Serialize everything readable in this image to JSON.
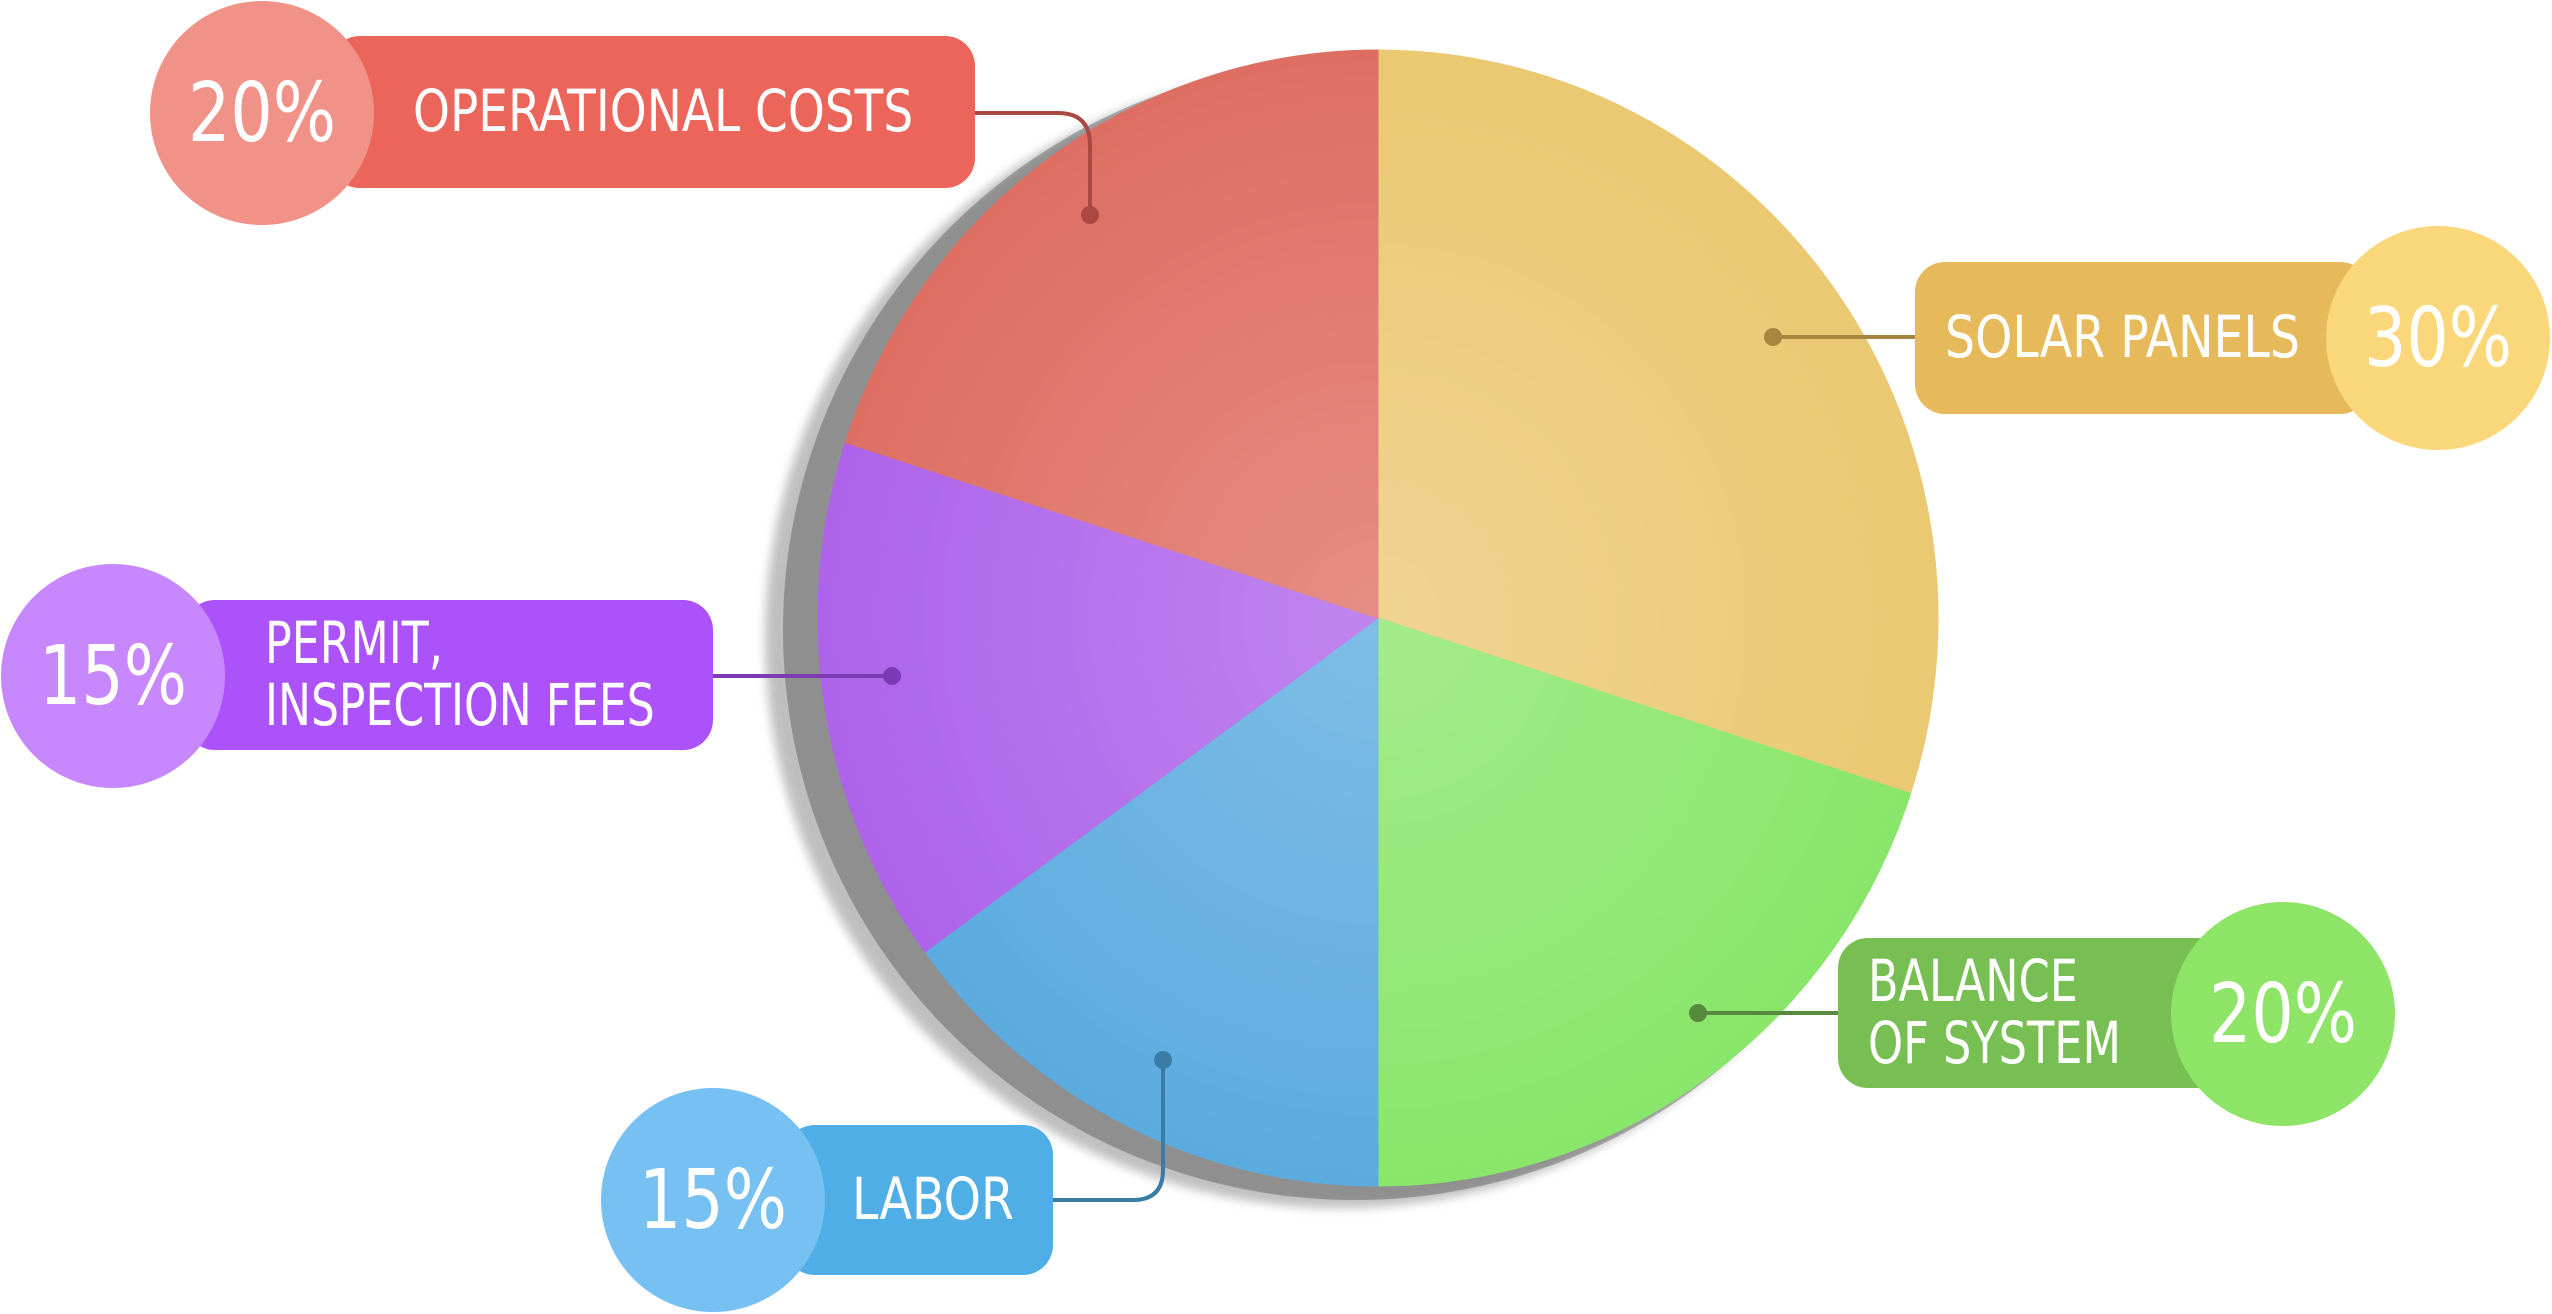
{
  "chart_data": {
    "type": "pie",
    "title": "",
    "slices": [
      {
        "label_lines": [
          "SOLAR PANELS"
        ],
        "value": 30,
        "percent_text": "30%",
        "color": "#EBC872",
        "tab_color": "#E6BA5A",
        "circle_color": "#F9D77A"
      },
      {
        "label_lines": [
          "BALANCE",
          "OF SYSTEM"
        ],
        "value": 20,
        "percent_text": "20%",
        "color": "#8AE66A",
        "tab_color": "#78BF53",
        "circle_color": "#8DE467"
      },
      {
        "label_lines": [
          "LABOR"
        ],
        "value": 15,
        "percent_text": "15%",
        "color": "#5BABDF",
        "tab_color": "#4FAEE6",
        "circle_color": "#76C0F2"
      },
      {
        "label_lines": [
          "PERMIT,",
          "INSPECTION FEES"
        ],
        "value": 15,
        "percent_text": "15%",
        "color": "#AE63EA",
        "tab_color": "#AC52FA",
        "circle_color": "#C888FD"
      },
      {
        "label_lines": [
          "OPERATIONAL COSTS"
        ],
        "value": 20,
        "percent_text": "20%",
        "color": "#DE6E62",
        "tab_color": "#EB655B",
        "circle_color": "#F19288"
      }
    ]
  }
}
